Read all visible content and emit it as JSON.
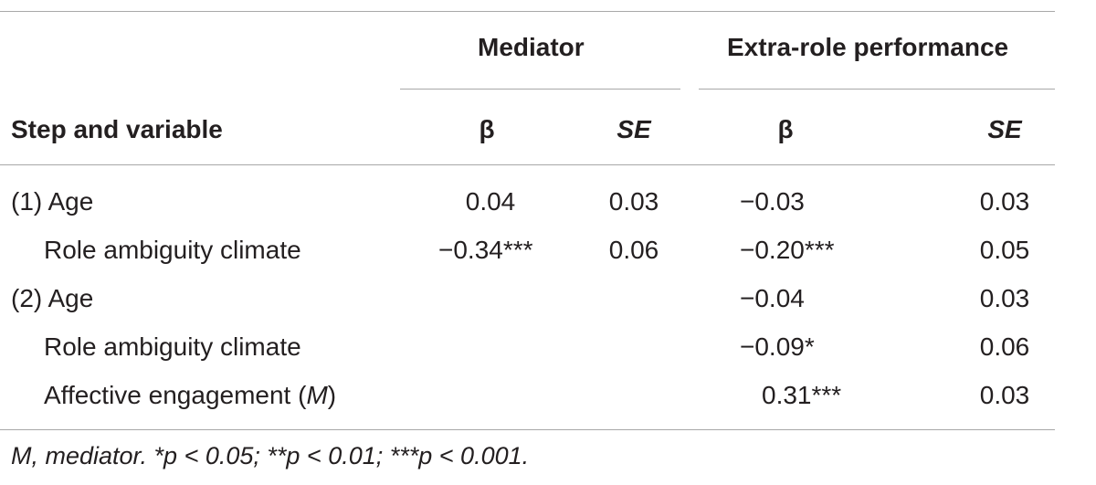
{
  "table": {
    "group_headers": {
      "mediator": "Mediator",
      "extra_role": "Extra-role performance"
    },
    "column_headers": {
      "step": "Step and variable",
      "beta1": "β",
      "se1": "SE",
      "beta2": "β",
      "se2": "SE"
    },
    "rows": [
      {
        "label": "(1) Age",
        "beta1": "0.04",
        "se1": "0.03",
        "beta2": "−0.03",
        "se2": "0.03"
      },
      {
        "label": "Role ambiguity climate",
        "beta1": "−0.34***",
        "se1": "0.06",
        "beta2": "−0.20***",
        "se2": "0.05"
      },
      {
        "label": "(2) Age",
        "beta1": "",
        "se1": "",
        "beta2": "−0.04",
        "se2": "0.03"
      },
      {
        "label": "Role ambiguity climate",
        "beta1": "",
        "se1": "",
        "beta2": "−0.09*",
        "se2": "0.06"
      },
      {
        "label_prefix": "Affective engagement (",
        "label_italic": "M",
        "label_suffix": ")",
        "beta1": "",
        "se1": "",
        "beta2": "0.31***",
        "se2": "0.03"
      }
    ],
    "footnote": "M, mediator. *p < 0.05; **p < 0.01; ***p < 0.001."
  }
}
